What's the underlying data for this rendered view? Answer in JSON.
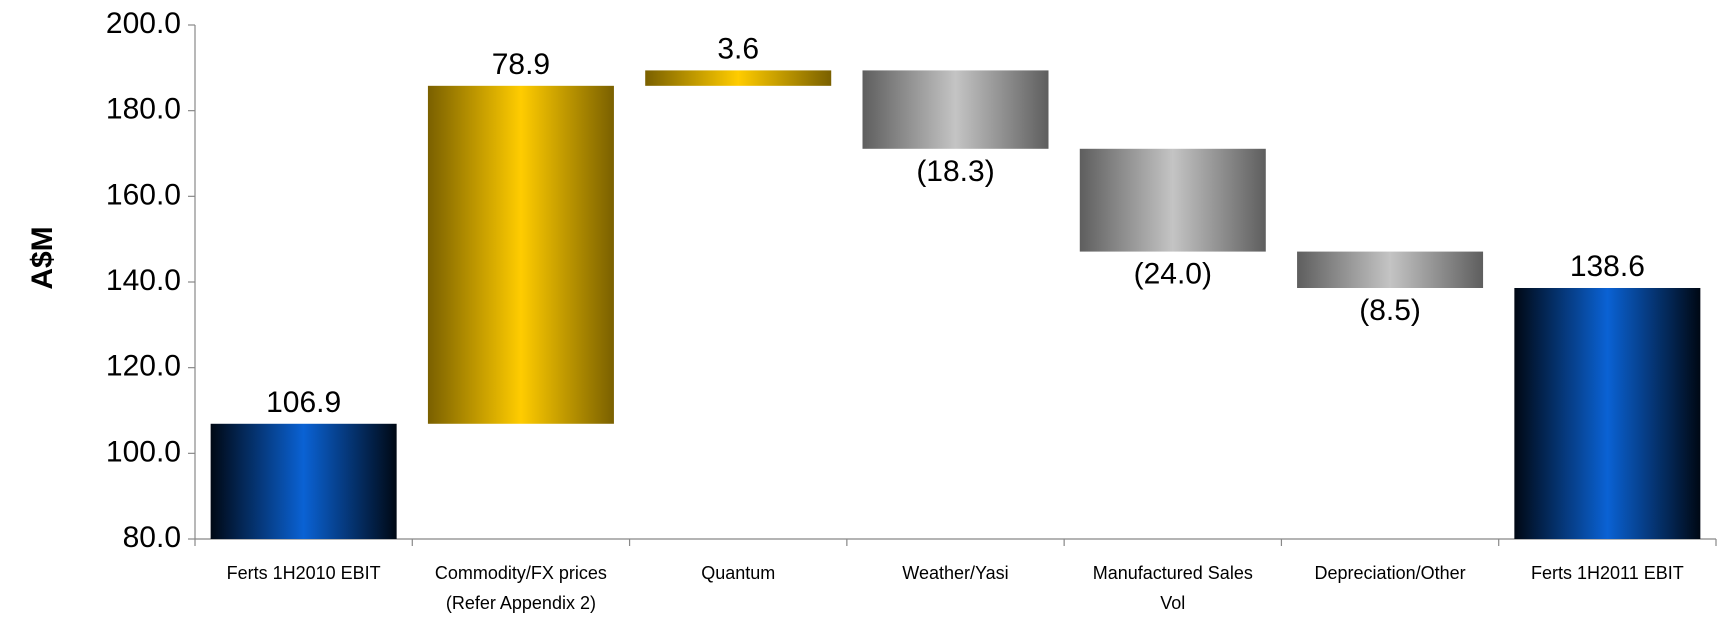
{
  "chart_data": {
    "type": "waterfall",
    "y_label": "A$M",
    "categories": [
      "Ferts 1H2010 EBIT",
      "Commodity/FX prices\n(Refer Appendix 2)",
      "Quantum",
      "Weather/Yasi",
      "Manufactured Sales\nVol",
      "Depreciation/Other",
      "Ferts 1H2011 EBIT"
    ],
    "measures": [
      "absolute",
      "relative",
      "relative",
      "relative",
      "relative",
      "relative",
      "total"
    ],
    "values": [
      106.9,
      78.9,
      3.6,
      -18.3,
      -24.0,
      -8.5,
      138.6
    ],
    "value_labels": [
      "106.9",
      "78.9",
      "3.6",
      "(18.3)",
      "(24.0)",
      "(8.5)",
      "138.6"
    ],
    "colors": {
      "total": [
        "#000814",
        "#0a62d4"
      ],
      "increase": [
        "#7a6000",
        "#ffcc00"
      ],
      "decrease": [
        "#5e5e5e",
        "#c4c4c4"
      ]
    },
    "ylim": [
      80,
      200
    ],
    "yticks": [
      {
        "value": 80,
        "label": "80.0"
      },
      {
        "value": 100,
        "label": "100.0"
      },
      {
        "value": 120,
        "label": "120.0"
      },
      {
        "value": 140,
        "label": "140.0"
      },
      {
        "value": 160,
        "label": "160.0"
      },
      {
        "value": 180,
        "label": "180.0"
      },
      {
        "value": 200,
        "label": "200.0"
      }
    ]
  }
}
